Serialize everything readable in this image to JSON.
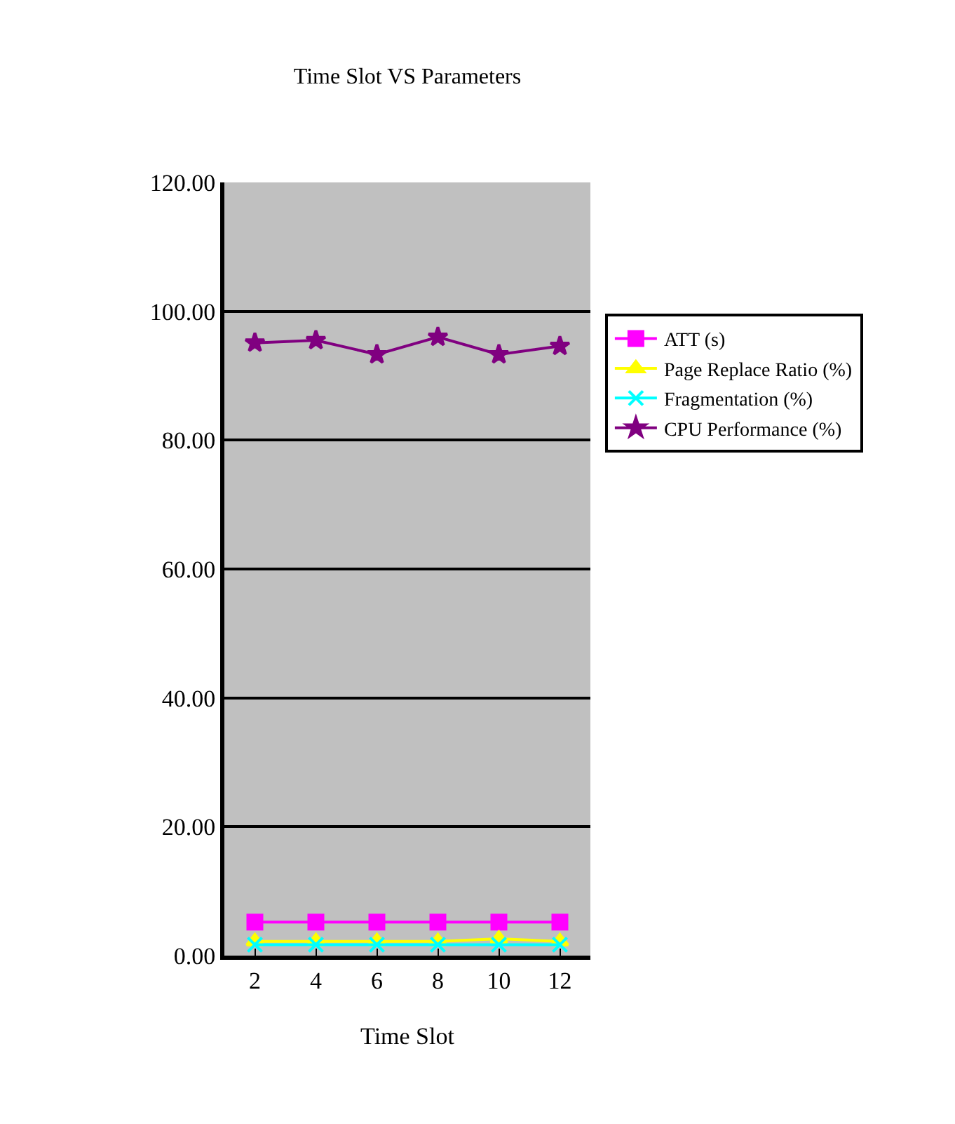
{
  "chart_data": {
    "type": "line",
    "title": "Time Slot VS Parameters",
    "xlabel": "Time Slot",
    "categories": [
      "2",
      "4",
      "6",
      "8",
      "10",
      "12"
    ],
    "series": [
      {
        "name": "ATT (s)",
        "color": "#ff00ff",
        "marker": "square",
        "values": [
          5.2,
          5.2,
          5.2,
          5.2,
          5.2,
          5.2
        ]
      },
      {
        "name": "Page Replace Ratio (%)",
        "color": "#ffff00",
        "marker": "triangle",
        "values": [
          2.2,
          2.2,
          2.2,
          2.2,
          2.6,
          2.2
        ]
      },
      {
        "name": "Fragmentation (%)",
        "color": "#00ffff",
        "marker": "cross",
        "values": [
          1.7,
          1.7,
          1.7,
          1.7,
          1.7,
          1.7
        ]
      },
      {
        "name": "CPU Performance (%)",
        "color": "#800080",
        "marker": "star",
        "values": [
          95.1,
          95.5,
          93.3,
          96.0,
          93.3,
          94.6
        ]
      }
    ],
    "ylim": [
      0,
      120
    ],
    "yticks": [
      {
        "value": 0,
        "label": "0.00"
      },
      {
        "value": 20,
        "label": "20.00"
      },
      {
        "value": 40,
        "label": "40.00"
      },
      {
        "value": 60,
        "label": "60.00"
      },
      {
        "value": 80,
        "label": "80.00"
      },
      {
        "value": 100,
        "label": "100.00"
      },
      {
        "value": 120,
        "label": "120.00"
      }
    ],
    "grid": "y",
    "legend": "right"
  }
}
